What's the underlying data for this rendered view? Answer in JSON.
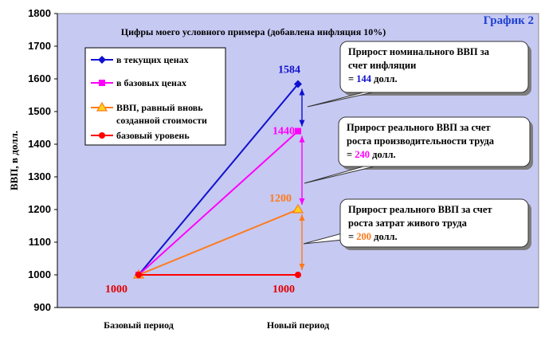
{
  "chart_data": {
    "type": "line",
    "title": "График 2",
    "subtitle": "Цифры моего условного примера (добавлена инфляция 10%)",
    "ylabel": "ВВП, в долл.",
    "xlabel": "",
    "categories": [
      "Базовый период",
      "Новый период"
    ],
    "ylim": [
      900,
      1800
    ],
    "yticks": [
      900,
      1000,
      1100,
      1200,
      1300,
      1400,
      1500,
      1600,
      1700,
      1800
    ],
    "grid": false,
    "background": "#c6c9f2",
    "series": [
      {
        "name": "в текущих ценах",
        "color": "#1010d0",
        "marker": "diamond",
        "values": [
          1000,
          1584
        ]
      },
      {
        "name": "в базовых ценах",
        "color": "#ff00ff",
        "marker": "square",
        "values": [
          1000,
          1440
        ]
      },
      {
        "name": "ВВП, равный  вновь созданной стоимости",
        "color": "#ff7a1a",
        "marker": "triangle",
        "values": [
          1000,
          1200
        ]
      },
      {
        "name": "базовый уровень",
        "color": "#ff0000",
        "marker": "circle",
        "values": [
          1000,
          1000
        ]
      }
    ],
    "data_labels": [
      {
        "text": "1584",
        "color": "#1010d0"
      },
      {
        "text": "1440",
        "color": "#ff00ff"
      },
      {
        "text": "1200",
        "color": "#ff7a1a"
      },
      {
        "text": "1000",
        "color": "#e00000"
      },
      {
        "text": "1000",
        "color": "#e00000"
      }
    ],
    "callouts": [
      {
        "lines": [
          "Прирост номинального ВВП за",
          "счет инфляции",
          "= "
        ],
        "value": "144",
        "unit": " долл.",
        "value_color": "#1010d0"
      },
      {
        "lines": [
          "Прирост реального ВВП за счет",
          "роста производительности труда",
          "= "
        ],
        "value": "240",
        "unit": " долл.",
        "value_color": "#ff00ff"
      },
      {
        "lines": [
          "Прирост реального  ВВП за счет",
          "роста затрат живого труда",
          "= "
        ],
        "value": "200",
        "unit": " долл.",
        "value_color": "#ff7a1a"
      }
    ]
  }
}
